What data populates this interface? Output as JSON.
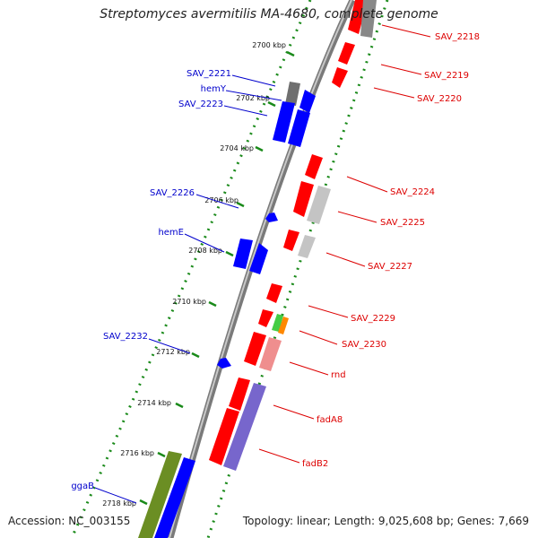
{
  "header": {
    "title": "Streptomyces avermitilis MA-4680, complete genome"
  },
  "footer": {
    "accession": "Accession: NC_003155",
    "topology": "Topology: linear; Length: 9,025,608 bp; Genes: 7,669"
  },
  "colors": {
    "backbone": "#8a8a8a",
    "forward_gene": "#0000ff",
    "reverse_gene": "#ff0000",
    "tick": "#1a8a1a",
    "forward_label": "#0000cc",
    "reverse_label": "#dd0000"
  },
  "axis": {
    "ticks": [
      "2700 kbp",
      "2702 kbp",
      "2704 kbp",
      "2706 kbp",
      "2708 kbp",
      "2710 kbp",
      "2712 kbp",
      "2714 kbp",
      "2716 kbp",
      "2718 kbp"
    ]
  },
  "genes": {
    "forward": [
      "SAV_2221",
      "hemY",
      "SAV_2223",
      "SAV_2226",
      "hemE",
      "SAV_2232",
      "ggaB"
    ],
    "reverse": [
      "SAV_2218",
      "SAV_2219",
      "SAV_2220",
      "SAV_2224",
      "SAV_2225",
      "SAV_2227",
      "SAV_2229",
      "SAV_2230",
      "rnd",
      "fadA8",
      "fadB2"
    ]
  }
}
